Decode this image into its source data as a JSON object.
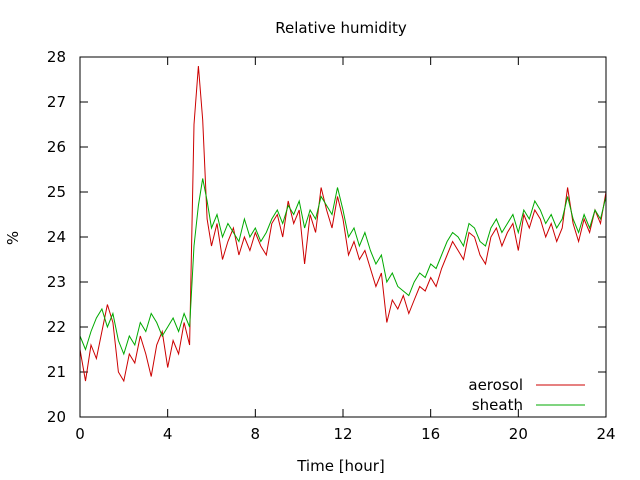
{
  "chart_data": {
    "type": "line",
    "title": "Relative humidity",
    "xlabel": "Time [hour]",
    "ylabel": "%",
    "xlim": [
      0,
      24
    ],
    "ylim": [
      20,
      28
    ],
    "xticks": [
      0,
      4,
      8,
      12,
      16,
      20,
      24
    ],
    "yticks": [
      20,
      21,
      22,
      23,
      24,
      25,
      26,
      27,
      28
    ],
    "grid": false,
    "legend_position": "bottom-right",
    "series": [
      {
        "name": "aerosol",
        "color": "#cc0000",
        "x": [
          0,
          0.25,
          0.5,
          0.75,
          1,
          1.25,
          1.5,
          1.75,
          2,
          2.25,
          2.5,
          2.75,
          3,
          3.25,
          3.5,
          3.75,
          4,
          4.25,
          4.5,
          4.75,
          5,
          5.2,
          5.4,
          5.6,
          5.8,
          6,
          6.25,
          6.5,
          6.75,
          7,
          7.25,
          7.5,
          7.75,
          8,
          8.25,
          8.5,
          8.75,
          9,
          9.25,
          9.5,
          9.75,
          10,
          10.25,
          10.5,
          10.75,
          11,
          11.25,
          11.5,
          11.75,
          12,
          12.25,
          12.5,
          12.75,
          13,
          13.25,
          13.5,
          13.75,
          14,
          14.25,
          14.5,
          14.75,
          15,
          15.25,
          15.5,
          15.75,
          16,
          16.25,
          16.5,
          16.75,
          17,
          17.25,
          17.5,
          17.75,
          18,
          18.25,
          18.5,
          18.75,
          19,
          19.25,
          19.5,
          19.75,
          20,
          20.25,
          20.5,
          20.75,
          21,
          21.25,
          21.5,
          21.75,
          22,
          22.25,
          22.5,
          22.75,
          23,
          23.25,
          23.5,
          23.75,
          24
        ],
        "y": [
          21.5,
          20.8,
          21.6,
          21.3,
          21.9,
          22.5,
          22.1,
          21.0,
          20.8,
          21.4,
          21.2,
          21.8,
          21.4,
          20.9,
          21.6,
          21.9,
          21.1,
          21.7,
          21.4,
          22.1,
          21.6,
          26.5,
          27.8,
          26.6,
          24.4,
          23.8,
          24.3,
          23.5,
          23.9,
          24.2,
          23.6,
          24.0,
          23.7,
          24.1,
          23.8,
          23.6,
          24.3,
          24.5,
          24.0,
          24.8,
          24.3,
          24.6,
          23.4,
          24.5,
          24.1,
          25.1,
          24.6,
          24.2,
          24.9,
          24.4,
          23.6,
          23.9,
          23.5,
          23.7,
          23.3,
          22.9,
          23.2,
          22.1,
          22.6,
          22.4,
          22.7,
          22.3,
          22.6,
          22.9,
          22.8,
          23.1,
          22.9,
          23.3,
          23.6,
          23.9,
          23.7,
          23.5,
          24.1,
          24.0,
          23.6,
          23.4,
          24.0,
          24.2,
          23.8,
          24.1,
          24.3,
          23.7,
          24.5,
          24.2,
          24.6,
          24.4,
          24.0,
          24.3,
          23.9,
          24.2,
          25.1,
          24.3,
          23.9,
          24.4,
          24.1,
          24.6,
          24.3,
          25.0
        ]
      },
      {
        "name": "sheath",
        "color": "#00aa00",
        "x": [
          0,
          0.25,
          0.5,
          0.75,
          1,
          1.25,
          1.5,
          1.75,
          2,
          2.25,
          2.5,
          2.75,
          3,
          3.25,
          3.5,
          3.75,
          4,
          4.25,
          4.5,
          4.75,
          5,
          5.2,
          5.4,
          5.6,
          5.8,
          6,
          6.25,
          6.5,
          6.75,
          7,
          7.25,
          7.5,
          7.75,
          8,
          8.25,
          8.5,
          8.75,
          9,
          9.25,
          9.5,
          9.75,
          10,
          10.25,
          10.5,
          10.75,
          11,
          11.25,
          11.5,
          11.75,
          12,
          12.25,
          12.5,
          12.75,
          13,
          13.25,
          13.5,
          13.75,
          14,
          14.25,
          14.5,
          14.75,
          15,
          15.25,
          15.5,
          15.75,
          16,
          16.25,
          16.5,
          16.75,
          17,
          17.25,
          17.5,
          17.75,
          18,
          18.25,
          18.5,
          18.75,
          19,
          19.25,
          19.5,
          19.75,
          20,
          20.25,
          20.5,
          20.75,
          21,
          21.25,
          21.5,
          21.75,
          22,
          22.25,
          22.5,
          22.75,
          23,
          23.25,
          23.5,
          23.75,
          24
        ],
        "y": [
          21.8,
          21.5,
          21.9,
          22.2,
          22.4,
          22.0,
          22.3,
          21.7,
          21.4,
          21.8,
          21.6,
          22.1,
          21.9,
          22.3,
          22.1,
          21.8,
          22.0,
          22.2,
          21.9,
          22.3,
          22.0,
          23.8,
          24.7,
          25.3,
          24.8,
          24.2,
          24.5,
          24.0,
          24.3,
          24.1,
          23.9,
          24.4,
          24.0,
          24.2,
          23.9,
          24.1,
          24.4,
          24.6,
          24.3,
          24.7,
          24.5,
          24.8,
          24.2,
          24.6,
          24.4,
          24.9,
          24.7,
          24.5,
          25.1,
          24.6,
          24.0,
          24.2,
          23.8,
          24.1,
          23.7,
          23.4,
          23.6,
          23.0,
          23.2,
          22.9,
          22.8,
          22.7,
          23.0,
          23.2,
          23.1,
          23.4,
          23.3,
          23.6,
          23.9,
          24.1,
          24.0,
          23.8,
          24.3,
          24.2,
          23.9,
          23.8,
          24.2,
          24.4,
          24.1,
          24.3,
          24.5,
          24.1,
          24.6,
          24.4,
          24.8,
          24.6,
          24.3,
          24.5,
          24.2,
          24.4,
          24.9,
          24.4,
          24.1,
          24.5,
          24.2,
          24.6,
          24.4,
          24.9
        ]
      }
    ]
  }
}
